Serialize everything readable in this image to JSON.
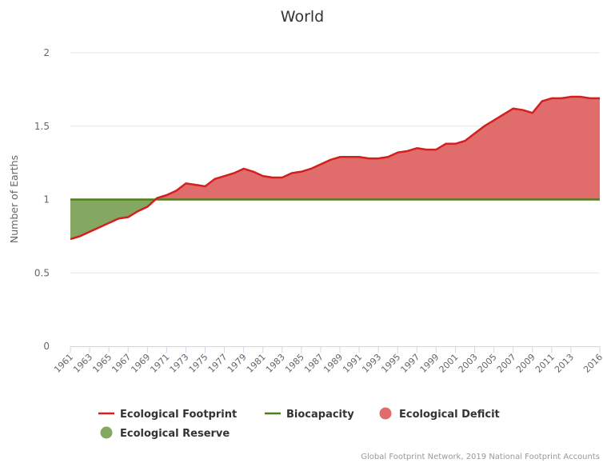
{
  "chart_data": {
    "type": "area",
    "title": "World",
    "xlabel": "",
    "ylabel": "Number of Earths",
    "xlim": [
      1961,
      2016
    ],
    "ylim": [
      0,
      2
    ],
    "y_ticks": [
      0,
      0.5,
      1,
      1.5,
      2
    ],
    "y_tick_labels": [
      "0",
      "0.5",
      "1",
      "1.5",
      "2"
    ],
    "x_tick_labels": [
      "1961",
      "1963",
      "1965",
      "1967",
      "1969",
      "1971",
      "1973",
      "1975",
      "1977",
      "1979",
      "1981",
      "1983",
      "1985",
      "1987",
      "1989",
      "1991",
      "1993",
      "1995",
      "1997",
      "1999",
      "2001",
      "2003",
      "2005",
      "2007",
      "2009",
      "2011",
      "2013",
      "2016"
    ],
    "grid": true,
    "legend_position": "bottom",
    "colors": {
      "footprint": "#d41f1f",
      "biocapacity": "#4e7f1b",
      "deficit": "#e06c6c",
      "reserve": "#84a862"
    },
    "series": [
      {
        "name": "Ecological Footprint",
        "type": "line",
        "x": [
          1961,
          1962,
          1963,
          1964,
          1965,
          1966,
          1967,
          1968,
          1969,
          1970,
          1971,
          1972,
          1973,
          1974,
          1975,
          1976,
          1977,
          1978,
          1979,
          1980,
          1981,
          1982,
          1983,
          1984,
          1985,
          1986,
          1987,
          1988,
          1989,
          1990,
          1991,
          1992,
          1993,
          1994,
          1995,
          1996,
          1997,
          1998,
          1999,
          2000,
          2001,
          2002,
          2003,
          2004,
          2005,
          2006,
          2007,
          2008,
          2009,
          2010,
          2011,
          2012,
          2013,
          2014,
          2015,
          2016
        ],
        "values": [
          0.73,
          0.75,
          0.78,
          0.81,
          0.84,
          0.87,
          0.88,
          0.92,
          0.95,
          1.01,
          1.03,
          1.06,
          1.11,
          1.1,
          1.09,
          1.14,
          1.16,
          1.18,
          1.21,
          1.19,
          1.16,
          1.15,
          1.15,
          1.18,
          1.19,
          1.21,
          1.24,
          1.27,
          1.29,
          1.29,
          1.29,
          1.28,
          1.28,
          1.29,
          1.32,
          1.33,
          1.35,
          1.34,
          1.34,
          1.38,
          1.38,
          1.4,
          1.45,
          1.5,
          1.54,
          1.58,
          1.62,
          1.61,
          1.59,
          1.67,
          1.69,
          1.69,
          1.7,
          1.7,
          1.69,
          1.69
        ]
      },
      {
        "name": "Biocapacity",
        "type": "line",
        "x": [
          1961,
          2016
        ],
        "values": [
          1,
          1
        ]
      },
      {
        "name": "Ecological Deficit",
        "type": "area"
      },
      {
        "name": "Ecological Reserve",
        "type": "area"
      }
    ],
    "credit": "Global Footprint Network, 2019 National Footprint Accounts"
  }
}
